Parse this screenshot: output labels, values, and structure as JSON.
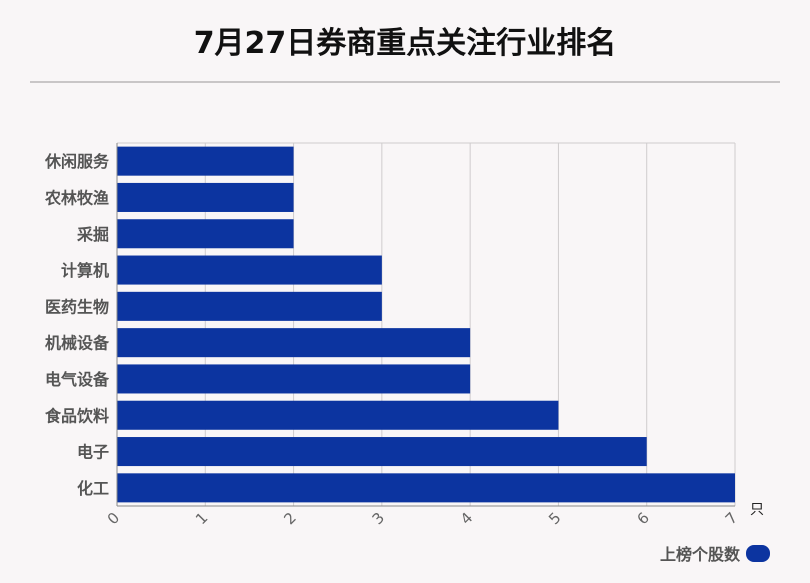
{
  "chart_data": {
    "type": "bar",
    "orientation": "horizontal",
    "title": "7月27日券商重点关注行业排名",
    "categories": [
      "休闲服务",
      "农林牧渔",
      "采掘",
      "计算机",
      "医药生物",
      "机械设备",
      "电气设备",
      "食品饮料",
      "电子",
      "化工"
    ],
    "series": [
      {
        "name": "上榜个股数",
        "values": [
          2,
          2,
          2,
          3,
          3,
          4,
          4,
          5,
          6,
          7
        ]
      }
    ],
    "xlim": [
      0,
      7
    ],
    "x_ticks": [
      "0",
      "1",
      "2",
      "3",
      "4",
      "5",
      "6",
      "7"
    ],
    "x_unit": "只",
    "grid": true,
    "legend_position": "bottom-right",
    "bar_color": "#0c34a0"
  }
}
